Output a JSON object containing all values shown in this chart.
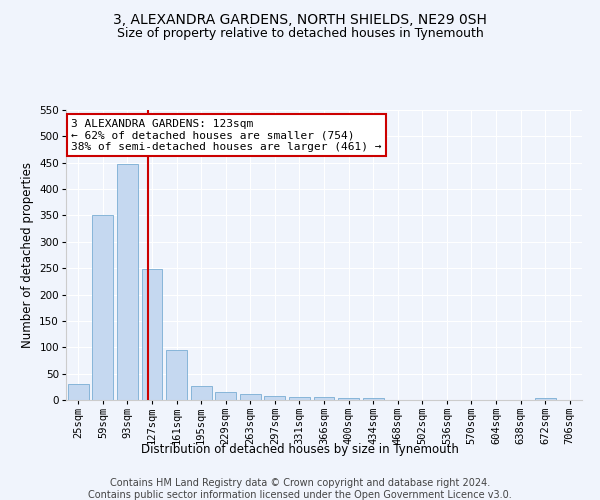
{
  "title": "3, ALEXANDRA GARDENS, NORTH SHIELDS, NE29 0SH",
  "subtitle": "Size of property relative to detached houses in Tynemouth",
  "xlabel": "Distribution of detached houses by size in Tynemouth",
  "ylabel": "Number of detached properties",
  "bar_labels": [
    "25sqm",
    "59sqm",
    "93sqm",
    "127sqm",
    "161sqm",
    "195sqm",
    "229sqm",
    "263sqm",
    "297sqm",
    "331sqm",
    "366sqm",
    "400sqm",
    "434sqm",
    "468sqm",
    "502sqm",
    "536sqm",
    "570sqm",
    "604sqm",
    "638sqm",
    "672sqm",
    "706sqm"
  ],
  "bar_values": [
    30,
    350,
    447,
    248,
    95,
    27,
    15,
    12,
    8,
    6,
    5,
    4,
    4,
    0,
    0,
    0,
    0,
    0,
    0,
    4,
    0
  ],
  "bar_color": "#c5d8f0",
  "bar_edgecolor": "#7aadd4",
  "vline_x": 2.82,
  "vline_color": "#cc0000",
  "annotation_text": "3 ALEXANDRA GARDENS: 123sqm\n← 62% of detached houses are smaller (754)\n38% of semi-detached houses are larger (461) →",
  "annotation_box_color": "#ffffff",
  "annotation_box_edgecolor": "#cc0000",
  "ylim": [
    0,
    550
  ],
  "yticks": [
    0,
    50,
    100,
    150,
    200,
    250,
    300,
    350,
    400,
    450,
    500,
    550
  ],
  "footer1": "Contains HM Land Registry data © Crown copyright and database right 2024.",
  "footer2": "Contains public sector information licensed under the Open Government Licence v3.0.",
  "bg_color": "#f0f4fc",
  "plot_bg_color": "#f0f4fc",
  "grid_color": "#ffffff",
  "title_fontsize": 10,
  "subtitle_fontsize": 9,
  "axis_label_fontsize": 8.5,
  "tick_fontsize": 7.5,
  "annotation_fontsize": 8,
  "footer_fontsize": 7
}
